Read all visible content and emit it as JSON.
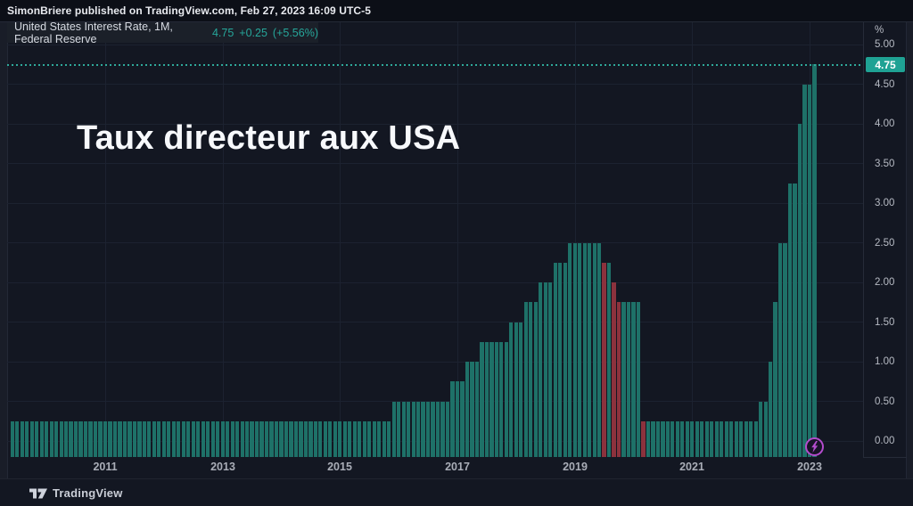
{
  "publish_bar": {
    "text": "SimonBriere published on TradingView.com, Feb 27, 2023 16:09 UTC-5"
  },
  "legend": {
    "title": "United States Interest Rate, 1M, Federal Reserve",
    "last_value": "4.75",
    "change": "+0.25",
    "change_pct": "(+5.56%)"
  },
  "annotation_title": "Taux directeur aux USA",
  "price_scale": {
    "unit": "%",
    "ticks": [
      "5.00",
      "4.50",
      "4.00",
      "3.50",
      "3.00",
      "2.50",
      "2.00",
      "1.50",
      "1.00",
      "0.50",
      "0.00"
    ],
    "badge_value": "4.75"
  },
  "time_scale": {
    "ticks": [
      "2011",
      "2013",
      "2015",
      "2017",
      "2019",
      "2021",
      "2023"
    ]
  },
  "footer": {
    "brand": "TradingView"
  },
  "icons": {
    "realtime": "lightning-bolt-icon",
    "brand_mark": "tradingview-logo"
  },
  "colors": {
    "background": "#131722",
    "bar_up": "#1e7168",
    "bar_down": "#8b323d",
    "accent_teal": "#26a69a",
    "badge_bg": "#1fa294",
    "price_line": "#2fa99a",
    "grid": "#1c2230",
    "axis_text": "#b7bbc4",
    "purple": "#b44ccd"
  },
  "chart_data": {
    "type": "bar",
    "title": "United States Interest Rate",
    "timeframe": "1M",
    "source": "Federal Reserve",
    "unit": "%",
    "ylabel": "%",
    "ylim": [
      0,
      5.0
    ],
    "y_tick_step": 0.5,
    "x_start": "2009-06",
    "x_end": "2023-02",
    "x_tick_years": [
      2011,
      2013,
      2015,
      2017,
      2019,
      2021,
      2023
    ],
    "grid": true,
    "current_value": 4.75,
    "change": 0.25,
    "change_pct": 5.56,
    "segments": [
      {
        "from": "2009-06",
        "to": "2015-11",
        "value": 0.25,
        "color": "up"
      },
      {
        "from": "2015-12",
        "to": "2016-11",
        "value": 0.5,
        "color": "up"
      },
      {
        "from": "2016-12",
        "to": "2017-02",
        "value": 0.75,
        "color": "up"
      },
      {
        "from": "2017-03",
        "to": "2017-05",
        "value": 1.0,
        "color": "up"
      },
      {
        "from": "2017-06",
        "to": "2017-11",
        "value": 1.25,
        "color": "up"
      },
      {
        "from": "2017-12",
        "to": "2018-02",
        "value": 1.5,
        "color": "up"
      },
      {
        "from": "2018-03",
        "to": "2018-05",
        "value": 1.75,
        "color": "up"
      },
      {
        "from": "2018-06",
        "to": "2018-08",
        "value": 2.0,
        "color": "up"
      },
      {
        "from": "2018-09",
        "to": "2018-11",
        "value": 2.25,
        "color": "up"
      },
      {
        "from": "2018-12",
        "to": "2019-06",
        "value": 2.5,
        "color": "up"
      },
      {
        "from": "2019-07",
        "to": "2019-07",
        "value": 2.25,
        "color": "down"
      },
      {
        "from": "2019-08",
        "to": "2019-08",
        "value": 2.25,
        "color": "up"
      },
      {
        "from": "2019-09",
        "to": "2019-09",
        "value": 2.0,
        "color": "down"
      },
      {
        "from": "2019-10",
        "to": "2019-10",
        "value": 1.75,
        "color": "down"
      },
      {
        "from": "2019-11",
        "to": "2020-02",
        "value": 1.75,
        "color": "up"
      },
      {
        "from": "2020-03",
        "to": "2020-03",
        "value": 0.25,
        "color": "down"
      },
      {
        "from": "2020-04",
        "to": "2022-02",
        "value": 0.25,
        "color": "up"
      },
      {
        "from": "2022-03",
        "to": "2022-04",
        "value": 0.5,
        "color": "up"
      },
      {
        "from": "2022-05",
        "to": "2022-05",
        "value": 1.0,
        "color": "up"
      },
      {
        "from": "2022-06",
        "to": "2022-06",
        "value": 1.75,
        "color": "up"
      },
      {
        "from": "2022-07",
        "to": "2022-08",
        "value": 2.5,
        "color": "up"
      },
      {
        "from": "2022-09",
        "to": "2022-10",
        "value": 3.25,
        "color": "up"
      },
      {
        "from": "2022-11",
        "to": "2022-11",
        "value": 4.0,
        "color": "up"
      },
      {
        "from": "2022-12",
        "to": "2023-01",
        "value": 4.5,
        "color": "up"
      },
      {
        "from": "2023-02",
        "to": "2023-02",
        "value": 4.75,
        "color": "up"
      }
    ]
  }
}
